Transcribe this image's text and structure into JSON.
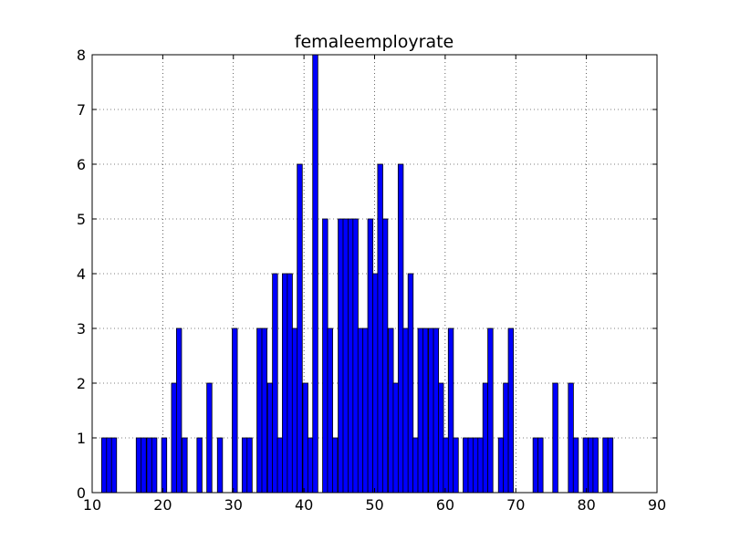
{
  "chart_data": {
    "type": "bar",
    "title": "femaleemployrate",
    "xlabel": "",
    "ylabel": "",
    "xlim": [
      10,
      90
    ],
    "ylim": [
      0,
      8
    ],
    "xticks": [
      "10",
      "20",
      "30",
      "40",
      "50",
      "60",
      "70",
      "80",
      "90"
    ],
    "yticks": [
      "0",
      "1",
      "2",
      "3",
      "4",
      "5",
      "6",
      "7",
      "8"
    ],
    "grid": true,
    "bar_color": "#0000ff",
    "bin_width": 0.72,
    "bins": [
      {
        "x": 11.7,
        "count": 1
      },
      {
        "x": 12.4,
        "count": 1
      },
      {
        "x": 13.1,
        "count": 1
      },
      {
        "x": 16.6,
        "count": 1
      },
      {
        "x": 17.3,
        "count": 1
      },
      {
        "x": 18.1,
        "count": 1
      },
      {
        "x": 18.8,
        "count": 1
      },
      {
        "x": 20.2,
        "count": 1
      },
      {
        "x": 21.6,
        "count": 2
      },
      {
        "x": 22.3,
        "count": 3
      },
      {
        "x": 23.1,
        "count": 1
      },
      {
        "x": 25.2,
        "count": 1
      },
      {
        "x": 26.6,
        "count": 2
      },
      {
        "x": 28.1,
        "count": 1
      },
      {
        "x": 30.2,
        "count": 3
      },
      {
        "x": 31.6,
        "count": 1
      },
      {
        "x": 32.3,
        "count": 1
      },
      {
        "x": 33.7,
        "count": 3
      },
      {
        "x": 34.4,
        "count": 3
      },
      {
        "x": 35.2,
        "count": 2
      },
      {
        "x": 35.9,
        "count": 4
      },
      {
        "x": 36.6,
        "count": 1
      },
      {
        "x": 37.3,
        "count": 4
      },
      {
        "x": 38.0,
        "count": 4
      },
      {
        "x": 38.7,
        "count": 3
      },
      {
        "x": 39.4,
        "count": 6
      },
      {
        "x": 40.2,
        "count": 2
      },
      {
        "x": 40.9,
        "count": 1
      },
      {
        "x": 41.6,
        "count": 8
      },
      {
        "x": 43.0,
        "count": 5
      },
      {
        "x": 43.7,
        "count": 3
      },
      {
        "x": 44.4,
        "count": 1
      },
      {
        "x": 45.2,
        "count": 5
      },
      {
        "x": 45.9,
        "count": 5
      },
      {
        "x": 46.6,
        "count": 5
      },
      {
        "x": 47.3,
        "count": 5
      },
      {
        "x": 48.0,
        "count": 3
      },
      {
        "x": 48.7,
        "count": 3
      },
      {
        "x": 49.4,
        "count": 5
      },
      {
        "x": 50.1,
        "count": 4
      },
      {
        "x": 50.8,
        "count": 6
      },
      {
        "x": 51.5,
        "count": 5
      },
      {
        "x": 52.3,
        "count": 3
      },
      {
        "x": 53.0,
        "count": 2
      },
      {
        "x": 53.7,
        "count": 6
      },
      {
        "x": 54.4,
        "count": 3
      },
      {
        "x": 55.1,
        "count": 4
      },
      {
        "x": 55.8,
        "count": 1
      },
      {
        "x": 56.5,
        "count": 3
      },
      {
        "x": 57.2,
        "count": 3
      },
      {
        "x": 58.0,
        "count": 3
      },
      {
        "x": 58.7,
        "count": 3
      },
      {
        "x": 59.4,
        "count": 2
      },
      {
        "x": 60.1,
        "count": 1
      },
      {
        "x": 60.8,
        "count": 3
      },
      {
        "x": 61.5,
        "count": 1
      },
      {
        "x": 62.9,
        "count": 1
      },
      {
        "x": 63.6,
        "count": 1
      },
      {
        "x": 64.3,
        "count": 1
      },
      {
        "x": 65.0,
        "count": 1
      },
      {
        "x": 65.7,
        "count": 2
      },
      {
        "x": 66.4,
        "count": 3
      },
      {
        "x": 67.9,
        "count": 1
      },
      {
        "x": 68.6,
        "count": 2
      },
      {
        "x": 69.3,
        "count": 3
      },
      {
        "x": 72.8,
        "count": 1
      },
      {
        "x": 73.5,
        "count": 1
      },
      {
        "x": 75.6,
        "count": 2
      },
      {
        "x": 77.8,
        "count": 2
      },
      {
        "x": 78.5,
        "count": 1
      },
      {
        "x": 79.9,
        "count": 1
      },
      {
        "x": 80.6,
        "count": 1
      },
      {
        "x": 81.3,
        "count": 1
      },
      {
        "x": 82.7,
        "count": 1
      },
      {
        "x": 83.4,
        "count": 1
      }
    ]
  }
}
